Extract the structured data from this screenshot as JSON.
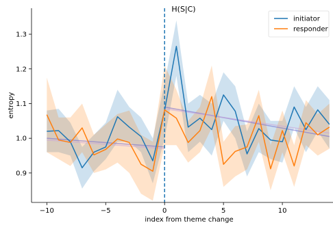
{
  "chart_data": {
    "type": "line",
    "title": "H(S|C)",
    "xlabel": "index from theme change",
    "ylabel": "entropy",
    "xlim": [
      -11.3,
      14.3
    ],
    "ylim": [
      0.815,
      1.375
    ],
    "xticks": [
      -10,
      -5,
      0,
      5,
      10
    ],
    "yticks": [
      0.9,
      1.0,
      1.1,
      1.2,
      1.3
    ],
    "x_tick_labels": [
      "−10",
      "−5",
      "0",
      "5",
      "10"
    ],
    "y_tick_labels": [
      "0.9",
      "1.0",
      "1.1",
      "1.2",
      "1.3"
    ],
    "grid": false,
    "legend_position": "top-right",
    "vline": {
      "x": 0,
      "style": "dashed",
      "color": "#1f77b4"
    },
    "x": [
      -10,
      -9,
      -8,
      -7,
      -6,
      -5,
      -4,
      -3,
      -2,
      -1,
      0,
      1,
      2,
      3,
      4,
      5,
      6,
      7,
      8,
      9,
      10,
      11,
      12,
      13,
      14
    ],
    "series": [
      {
        "name": "initiator",
        "color": "#1f77b4",
        "values": [
          1.02,
          1.022,
          0.99,
          0.915,
          0.96,
          0.975,
          1.062,
          1.032,
          1.005,
          0.935,
          1.08,
          1.265,
          1.032,
          1.058,
          1.025,
          1.125,
          1.078,
          0.955,
          1.028,
          0.995,
          0.99,
          1.09,
          1.025,
          1.082,
          1.04
        ],
        "ci_lower": [
          0.96,
          0.96,
          0.95,
          0.855,
          0.905,
          0.94,
          0.99,
          0.99,
          0.96,
          0.87,
          1.0,
          1.18,
          0.96,
          0.99,
          0.95,
          1.05,
          1.0,
          0.89,
          0.96,
          0.94,
          0.93,
          1.03,
          0.96,
          1.02,
          0.97
        ],
        "ci_upper": [
          1.08,
          1.085,
          1.045,
          0.975,
          1.01,
          1.045,
          1.14,
          1.09,
          1.06,
          1.0,
          1.16,
          1.34,
          1.1,
          1.125,
          1.1,
          1.19,
          1.15,
          1.02,
          1.1,
          1.05,
          1.05,
          1.15,
          1.09,
          1.15,
          1.11
        ],
        "trend": {
          "x": [
            -10,
            0,
            0,
            14
          ],
          "y": [
            1.0,
            0.975,
            1.09,
            1.005
          ]
        }
      },
      {
        "name": "responder",
        "color": "#ff7f0e",
        "values": [
          1.068,
          0.995,
          0.988,
          1.03,
          0.952,
          0.968,
          0.998,
          0.988,
          0.925,
          0.905,
          1.082,
          1.058,
          0.988,
          1.022,
          1.12,
          0.925,
          0.962,
          0.975,
          1.065,
          0.912,
          1.022,
          0.92,
          1.045,
          1.01,
          1.032
        ],
        "ci_lower": [
          0.96,
          0.94,
          0.92,
          0.96,
          0.9,
          0.91,
          0.93,
          0.9,
          0.84,
          0.82,
          0.98,
          0.98,
          0.93,
          0.96,
          1.03,
          0.86,
          0.89,
          0.91,
          0.99,
          0.85,
          0.96,
          0.86,
          0.98,
          0.95,
          0.97
        ],
        "ci_upper": [
          1.175,
          1.06,
          1.06,
          1.1,
          1.01,
          1.04,
          1.07,
          1.08,
          1.01,
          0.99,
          1.21,
          1.14,
          1.05,
          1.09,
          1.21,
          0.99,
          1.035,
          1.04,
          1.14,
          0.98,
          1.08,
          0.98,
          1.11,
          1.07,
          1.1
        ],
        "trend": {
          "x": [
            -10,
            0,
            0,
            14
          ],
          "y": [
            0.995,
            0.97,
            1.085,
            1.015
          ]
        }
      }
    ]
  }
}
